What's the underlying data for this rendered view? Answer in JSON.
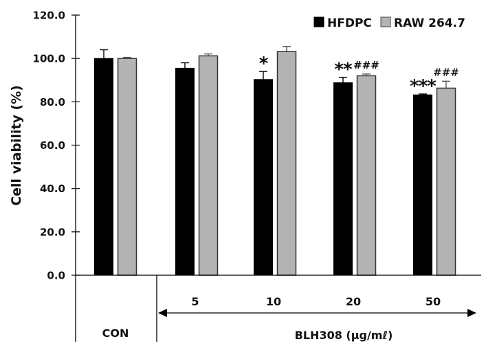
{
  "chart_data": {
    "type": "bar",
    "title": "",
    "xlabel": "BLH308 (μg/mℓ)",
    "ylabel": "Cell viability (%)",
    "ylim": [
      0,
      120
    ],
    "yticks": [
      "0.0",
      "20.0",
      "40.0",
      "60.0",
      "80.0",
      "100.0",
      "120.0"
    ],
    "grid": false,
    "legend_position": "top-right",
    "categories": [
      "CON",
      "5",
      "10",
      "20",
      "50"
    ],
    "group_labels": {
      "control": "CON",
      "treatment": "BLH308 (μg/mℓ)"
    },
    "series": [
      {
        "name": "HFDPC",
        "color": "#000000",
        "values": [
          100.0,
          95.5,
          90.3,
          88.8,
          83.2
        ],
        "errors": [
          4.0,
          2.5,
          3.7,
          2.5,
          0.4
        ],
        "significance": [
          "",
          "",
          "*",
          "**",
          "***"
        ]
      },
      {
        "name": "RAW 264.7",
        "color": "#b3b3b3",
        "values": [
          100.0,
          101.2,
          103.2,
          92.0,
          86.3
        ],
        "errors": [
          0.5,
          0.9,
          2.3,
          0.8,
          3.2
        ],
        "significance": [
          "",
          "",
          "",
          "###",
          "###"
        ]
      }
    ]
  }
}
